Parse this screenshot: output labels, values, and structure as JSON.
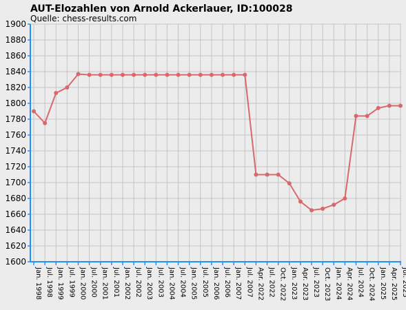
{
  "chart_data": {
    "type": "line",
    "title": "AUT-Elozahlen von Arnold Ackerlauer, ID:100028",
    "subtitle": "Quelle: chess-results.com",
    "xlabel": "",
    "ylabel": "",
    "ylim": [
      1600,
      1900
    ],
    "yticks": [
      1600,
      1620,
      1640,
      1660,
      1680,
      1700,
      1720,
      1740,
      1760,
      1780,
      1800,
      1820,
      1840,
      1860,
      1880,
      1900
    ],
    "grid": true,
    "legend": "none",
    "categories": [
      "Jan. 1998",
      "Jul. 1998",
      "Jan. 1999",
      "Jul. 1999",
      "Jan. 2000",
      "Jul. 2000",
      "Jan. 2001",
      "Jul. 2001",
      "Jan. 2002",
      "Jul. 2002",
      "Jan. 2003",
      "Jul. 2003",
      "Jan. 2004",
      "Jul. 2004",
      "Jan. 2005",
      "Jul. 2005",
      "Jan. 2006",
      "Jul. 2006",
      "Jan. 2007",
      "Jul. 2007",
      "Apr. 2022",
      "Jul. 2022",
      "Oct. 2022",
      "Jan. 2023",
      "Apr. 2023",
      "Jul. 2023",
      "Oct. 2023",
      "Jan. 2024",
      "Apr. 2024",
      "Jul. 2024",
      "Oct. 2024",
      "Jan. 2025",
      "Apr. 2025",
      "Jul. 2025"
    ],
    "series": [
      {
        "values": [
          1790,
          1775,
          1813,
          1820,
          1837,
          1836,
          1836,
          1836,
          1836,
          1836,
          1836,
          1836,
          1836,
          1836,
          1836,
          1836,
          1836,
          1836,
          1836,
          1836,
          1710,
          1710,
          1710,
          1699,
          1676,
          1665,
          1667,
          1672,
          1680,
          1784,
          1784,
          1794,
          1797,
          1797
        ]
      }
    ],
    "colors": {
      "background": "#ececec",
      "grid": "#c4c4c4",
      "axis": "#1e90ff",
      "line": "#d9686a",
      "marker": "#d9686a"
    }
  }
}
